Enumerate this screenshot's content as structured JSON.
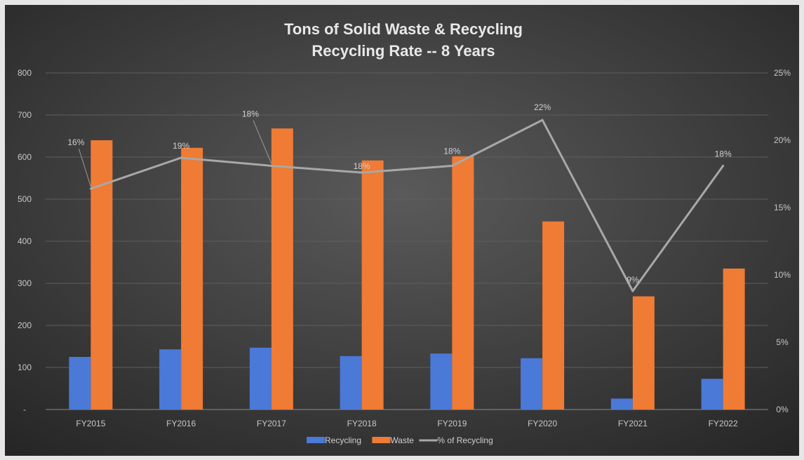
{
  "chart_data": {
    "type": "bar",
    "title": "Tons of Solid Waste  & Recycling",
    "subtitle": "Recycling Rate --  8 Years",
    "categories": [
      "FY2015",
      "FY2016",
      "FY2017",
      "FY2018",
      "FY2019",
      "FY2020",
      "FY2021",
      "FY2022"
    ],
    "series": [
      {
        "name": "Recycling",
        "type": "bar",
        "axis": "left",
        "color": "#4a79d8",
        "values": [
          125,
          143,
          147,
          127,
          133,
          122,
          26,
          73
        ]
      },
      {
        "name": "Waste",
        "type": "bar",
        "axis": "left",
        "color": "#ef7b35",
        "values": [
          640,
          622,
          668,
          592,
          602,
          447,
          269,
          335
        ]
      },
      {
        "name": "% of Recycling",
        "type": "line",
        "axis": "right",
        "color": "#a8a8a8",
        "values": [
          16.4,
          18.7,
          18.1,
          17.6,
          18.1,
          21.5,
          8.8,
          18.1
        ],
        "labels": [
          "16%",
          "19%",
          "18%",
          "18%",
          "18%",
          "22%",
          "9%",
          "18%"
        ]
      }
    ],
    "y_left": {
      "ylim": [
        0,
        800
      ],
      "ticks": [
        "-",
        "100",
        "200",
        "300",
        "400",
        "500",
        "600",
        "700",
        "800"
      ]
    },
    "y_right": {
      "ylim": [
        0,
        25
      ],
      "ticks": [
        "0%",
        "5%",
        "10%",
        "15%",
        "20%",
        "25%"
      ]
    },
    "grid": true,
    "legend_position": "bottom"
  }
}
